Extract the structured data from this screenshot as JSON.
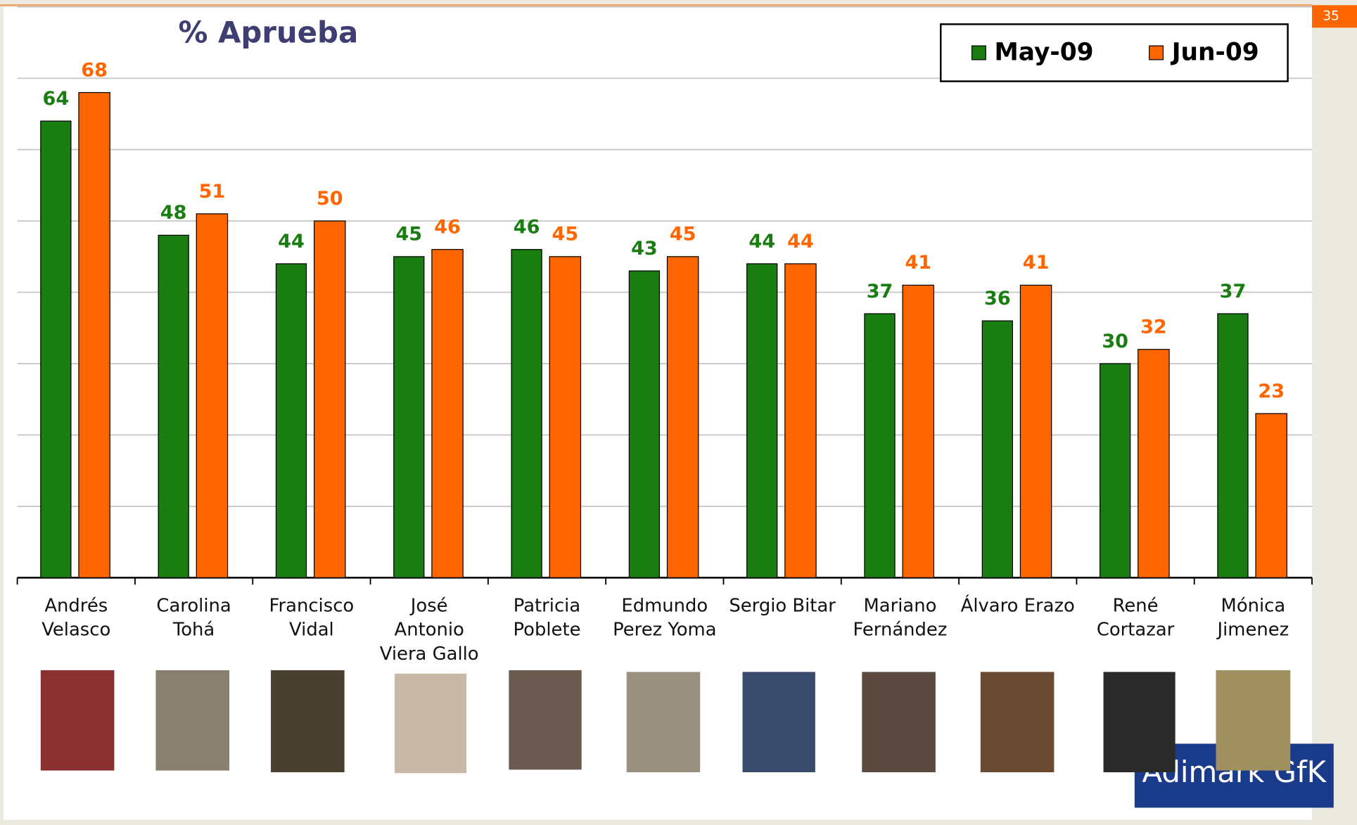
{
  "chart_data": {
    "type": "bar",
    "title": "% Aprueba",
    "categories": [
      "Andrés\nVelasco",
      "Carolina\nTohá",
      "Francisco\nVidal",
      "José\nAntonio\nViera Gallo",
      "Patricia\nPoblete",
      "Edmundo\nPerez Yoma",
      "Sergio Bitar",
      "Mariano\nFernández",
      "Álvaro Erazo",
      "René\nCortazar",
      "Mónica\nJimenez"
    ],
    "series": [
      {
        "name": "May-09",
        "color": "#1a7d12",
        "values": [
          64,
          48,
          44,
          45,
          46,
          43,
          44,
          37,
          36,
          30,
          37
        ]
      },
      {
        "name": "Jun-09",
        "color": "#ff6600",
        "values": [
          68,
          51,
          50,
          46,
          45,
          45,
          44,
          41,
          41,
          32,
          23
        ]
      }
    ],
    "ylim": [
      0,
      80
    ],
    "yticks": [
      0,
      10,
      20,
      30,
      40,
      50,
      60,
      70,
      80
    ],
    "grid": true,
    "legend": "top-right"
  },
  "page_number": "35",
  "logo": "Adimark GfK"
}
